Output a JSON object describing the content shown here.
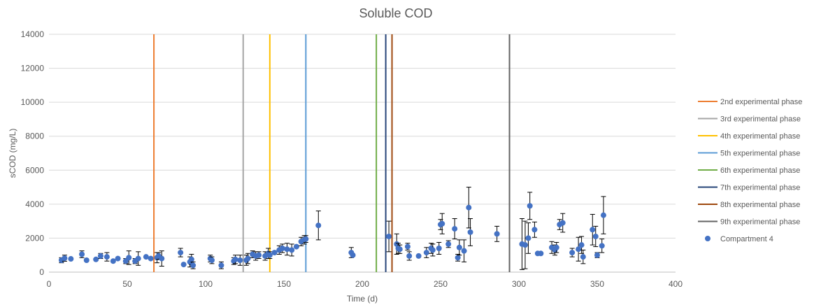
{
  "chart_data": {
    "type": "scatter",
    "title": "Soluble COD",
    "xlabel": "Time (d)",
    "ylabel": "sCOD (mg/L)",
    "xlim": [
      0,
      400
    ],
    "ylim": [
      0,
      14000
    ],
    "xticks": [
      0,
      50,
      100,
      150,
      200,
      250,
      300,
      350,
      400
    ],
    "yticks": [
      0,
      2000,
      4000,
      6000,
      8000,
      10000,
      12000,
      14000
    ],
    "grid": "horizontal",
    "legend_position": "right",
    "phase_lines": [
      {
        "name": "2nd experimental phase",
        "x": 67,
        "color": "#ED7D31"
      },
      {
        "name": "3rd experimental phase",
        "x": 124,
        "color": "#A5A5A5"
      },
      {
        "name": "4th experimental phase",
        "x": 141,
        "color": "#FFC000"
      },
      {
        "name": "5th experimental phase",
        "x": 164,
        "color": "#5B9BD5"
      },
      {
        "name": "6th experimental phase",
        "x": 209,
        "color": "#70AD47"
      },
      {
        "name": "7th experimental phase",
        "x": 215,
        "color": "#264478"
      },
      {
        "name": "8th experimental phase",
        "x": 219,
        "color": "#9E480E"
      },
      {
        "name": "9th experimental phase",
        "x": 294,
        "color": "#636363"
      }
    ],
    "series": [
      {
        "name": "Compartment 4",
        "color": "#4472C4",
        "points": [
          {
            "x": 8,
            "y": 700,
            "err": 150
          },
          {
            "x": 10,
            "y": 820,
            "err": 180
          },
          {
            "x": 14,
            "y": 780,
            "err": 0
          },
          {
            "x": 21,
            "y": 1050,
            "err": 200
          },
          {
            "x": 24,
            "y": 700,
            "err": 0
          },
          {
            "x": 30,
            "y": 750,
            "err": 0
          },
          {
            "x": 33,
            "y": 950,
            "err": 150
          },
          {
            "x": 37,
            "y": 900,
            "err": 250
          },
          {
            "x": 41,
            "y": 650,
            "err": 0
          },
          {
            "x": 44,
            "y": 800,
            "err": 0
          },
          {
            "x": 49,
            "y": 650,
            "err": 150
          },
          {
            "x": 51,
            "y": 850,
            "err": 400
          },
          {
            "x": 55,
            "y": 650,
            "err": 150
          },
          {
            "x": 57,
            "y": 800,
            "err": 400
          },
          {
            "x": 62,
            "y": 900,
            "err": 0
          },
          {
            "x": 65,
            "y": 800,
            "err": 0
          },
          {
            "x": 69,
            "y": 850,
            "err": 300
          },
          {
            "x": 70,
            "y": 950,
            "err": 200
          },
          {
            "x": 72,
            "y": 800,
            "err": 450
          },
          {
            "x": 84,
            "y": 1150,
            "err": 250
          },
          {
            "x": 86,
            "y": 450,
            "err": 0
          },
          {
            "x": 90,
            "y": 600,
            "err": 300
          },
          {
            "x": 91,
            "y": 750,
            "err": 300
          },
          {
            "x": 92,
            "y": 400,
            "err": 200
          },
          {
            "x": 103,
            "y": 800,
            "err": 200
          },
          {
            "x": 104,
            "y": 700,
            "err": 200
          },
          {
            "x": 110,
            "y": 400,
            "err": 200
          },
          {
            "x": 118,
            "y": 650,
            "err": 200
          },
          {
            "x": 119,
            "y": 750,
            "err": 250
          },
          {
            "x": 122,
            "y": 700,
            "err": 300
          },
          {
            "x": 126,
            "y": 700,
            "err": 300
          },
          {
            "x": 127,
            "y": 800,
            "err": 300
          },
          {
            "x": 130,
            "y": 1050,
            "err": 200
          },
          {
            "x": 132,
            "y": 950,
            "err": 250
          },
          {
            "x": 134,
            "y": 1000,
            "err": 200
          },
          {
            "x": 138,
            "y": 950,
            "err": 250
          },
          {
            "x": 140,
            "y": 1100,
            "err": 300
          },
          {
            "x": 141,
            "y": 1000,
            "err": 200
          },
          {
            "x": 144,
            "y": 1150,
            "err": 0
          },
          {
            "x": 147,
            "y": 1300,
            "err": 250
          },
          {
            "x": 149,
            "y": 1400,
            "err": 250
          },
          {
            "x": 152,
            "y": 1350,
            "err": 350
          },
          {
            "x": 155,
            "y": 1300,
            "err": 350
          },
          {
            "x": 158,
            "y": 1500,
            "err": 0
          },
          {
            "x": 161,
            "y": 1800,
            "err": 250
          },
          {
            "x": 163,
            "y": 1900,
            "err": 250
          },
          {
            "x": 164,
            "y": 1950,
            "err": 200
          },
          {
            "x": 172,
            "y": 2750,
            "err": 850
          },
          {
            "x": 193,
            "y": 1150,
            "err": 300
          },
          {
            "x": 194,
            "y": 1000,
            "err": 0
          },
          {
            "x": 217,
            "y": 2100,
            "err": 900
          },
          {
            "x": 222,
            "y": 1650,
            "err": 600
          },
          {
            "x": 223,
            "y": 1400,
            "err": 300
          },
          {
            "x": 224,
            "y": 1350,
            "err": 250
          },
          {
            "x": 229,
            "y": 1500,
            "err": 200
          },
          {
            "x": 230,
            "y": 950,
            "err": 250
          },
          {
            "x": 236,
            "y": 950,
            "err": 0
          },
          {
            "x": 241,
            "y": 1150,
            "err": 300
          },
          {
            "x": 244,
            "y": 1400,
            "err": 300
          },
          {
            "x": 245,
            "y": 1300,
            "err": 350
          },
          {
            "x": 249,
            "y": 1400,
            "err": 350
          },
          {
            "x": 250,
            "y": 2800,
            "err": 300
          },
          {
            "x": 251,
            "y": 2850,
            "err": 600
          },
          {
            "x": 255,
            "y": 1650,
            "err": 200
          },
          {
            "x": 259,
            "y": 2550,
            "err": 600
          },
          {
            "x": 261,
            "y": 850,
            "err": 200
          },
          {
            "x": 262,
            "y": 1450,
            "err": 450
          },
          {
            "x": 265,
            "y": 1250,
            "err": 650
          },
          {
            "x": 268,
            "y": 3800,
            "err": 1200
          },
          {
            "x": 269,
            "y": 2350,
            "err": 800
          },
          {
            "x": 286,
            "y": 2250,
            "err": 450
          },
          {
            "x": 302,
            "y": 1650,
            "err": 1500
          },
          {
            "x": 304,
            "y": 1600,
            "err": 1400
          },
          {
            "x": 306,
            "y": 2000,
            "err": 900
          },
          {
            "x": 307,
            "y": 3900,
            "err": 800
          },
          {
            "x": 310,
            "y": 2500,
            "err": 450
          },
          {
            "x": 312,
            "y": 1100,
            "err": 0
          },
          {
            "x": 314,
            "y": 1100,
            "err": 0
          },
          {
            "x": 321,
            "y": 1450,
            "err": 350
          },
          {
            "x": 323,
            "y": 1300,
            "err": 300
          },
          {
            "x": 324,
            "y": 1450,
            "err": 300
          },
          {
            "x": 326,
            "y": 2800,
            "err": 300
          },
          {
            "x": 328,
            "y": 2900,
            "err": 550
          },
          {
            "x": 334,
            "y": 1150,
            "err": 250
          },
          {
            "x": 338,
            "y": 1350,
            "err": 700
          },
          {
            "x": 340,
            "y": 1600,
            "err": 500
          },
          {
            "x": 341,
            "y": 900,
            "err": 400
          },
          {
            "x": 347,
            "y": 2500,
            "err": 900
          },
          {
            "x": 349,
            "y": 2100,
            "err": 600
          },
          {
            "x": 350,
            "y": 1000,
            "err": 150
          },
          {
            "x": 353,
            "y": 1550,
            "err": 400
          },
          {
            "x": 354,
            "y": 3350,
            "err": 1100
          }
        ]
      }
    ]
  }
}
